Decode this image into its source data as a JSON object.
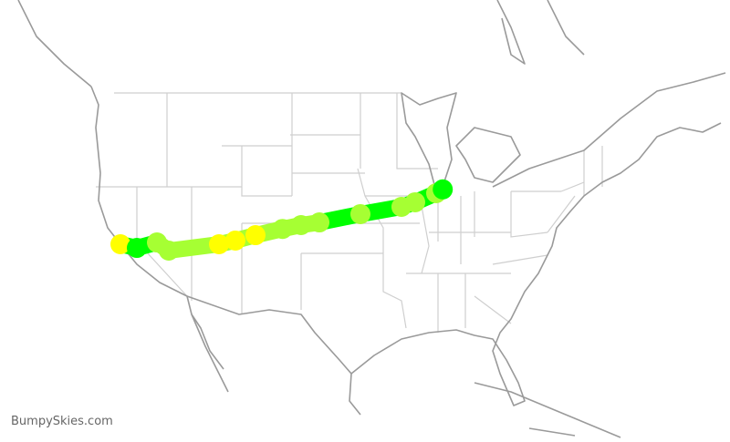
{
  "watermark": "BumpySkies.com",
  "legend_colors": {
    "smooth": "#00ff00",
    "light": "#a6ff33",
    "moderate": "#ffff00"
  },
  "route": {
    "waypoints": [
      {
        "lat": 37.6,
        "lon": -122.4,
        "level": "moderate",
        "segment": "smooth"
      },
      {
        "lat": 37.31,
        "lon": -120.63,
        "level": "smooth",
        "segment": "smooth"
      },
      {
        "lat": 37.74,
        "lon": -118.46,
        "level": "light",
        "segment": "light"
      },
      {
        "lat": 37.1,
        "lon": -117.18,
        "level": "light",
        "segment": "light"
      },
      {
        "lat": 37.6,
        "lon": -111.76,
        "level": "moderate",
        "segment": "light"
      },
      {
        "lat": 37.89,
        "lon": -109.99,
        "level": "moderate",
        "segment": "light"
      },
      {
        "lat": 38.31,
        "lon": -107.82,
        "level": "moderate",
        "segment": "light"
      },
      {
        "lat": 38.8,
        "lon": -104.9,
        "level": "light",
        "segment": "light"
      },
      {
        "lat": 39.1,
        "lon": -102.9,
        "level": "light",
        "segment": "light"
      },
      {
        "lat": 39.31,
        "lon": -100.92,
        "level": "light",
        "segment": "smooth"
      },
      {
        "lat": 39.96,
        "lon": -96.49,
        "level": "light",
        "segment": "smooth"
      },
      {
        "lat": 40.53,
        "lon": -92.06,
        "level": "light",
        "segment": "smooth"
      },
      {
        "lat": 40.89,
        "lon": -90.58,
        "level": "light",
        "segment": "smooth"
      },
      {
        "lat": 41.6,
        "lon": -88.31,
        "level": "light",
        "segment": "smooth"
      },
      {
        "lat": 41.9,
        "lon": -87.6,
        "level": "smooth",
        "segment": "smooth"
      }
    ]
  }
}
